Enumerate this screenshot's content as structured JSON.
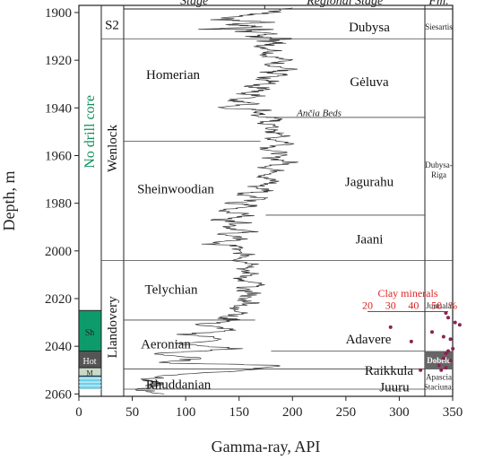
{
  "chart_data": {
    "type": "line",
    "xlabel": "Gamma-ray, API",
    "ylabel": "Depth, m",
    "xlim": [
      0,
      350
    ],
    "ylim": [
      1897,
      2061
    ],
    "xticks": [
      "0",
      "50",
      "100",
      "150",
      "200",
      "250",
      "300",
      "350"
    ],
    "yticks": [
      "1900",
      "1920",
      "1940",
      "1960",
      "1980",
      "2000",
      "2020",
      "2040",
      "2060"
    ],
    "headers": {
      "stage": "Stage",
      "regional": "Regional Stage",
      "fm": "Fm."
    },
    "series_stage": [
      "S2",
      "Wenlock",
      "Llandovery"
    ],
    "stages": [
      {
        "name": "Homerian",
        "depth": 1926
      },
      {
        "name": "Sheinwoodian",
        "depth": 1974
      },
      {
        "name": "Telychian",
        "depth": 2016
      },
      {
        "name": "Aeronian",
        "depth": 2039
      },
      {
        "name": "Rhuddanian",
        "depth": 2056
      }
    ],
    "regional_stages": [
      {
        "name": "Dubysa",
        "depth": 1906
      },
      {
        "name": "Gėluva",
        "depth": 1929
      },
      {
        "name": "Jagurahu",
        "depth": 1971
      },
      {
        "name": "Jaani",
        "depth": 1995
      },
      {
        "name": "Adavere",
        "depth": 2037
      },
      {
        "name": "Raikkula",
        "depth": 2050
      },
      {
        "name": "Juuru",
        "depth": 2057
      }
    ],
    "beds_label": "Ančia Beds",
    "formations": [
      {
        "name": "Siesartis",
        "depth": 1906
      },
      {
        "name": "Dubysa-",
        "depth": 1964
      },
      {
        "name": "Riga",
        "depth": 1968
      },
      {
        "name": "Jurmala",
        "depth": 2023
      },
      {
        "name": "Dobele",
        "depth": 2046
      },
      {
        "name": "Apascia",
        "depth": 2053
      },
      {
        "name": "Staciunai",
        "depth": 2057
      }
    ],
    "lithology": {
      "no_core": "No drill core",
      "sh": "Sh",
      "hot": "Hot",
      "m": "M"
    },
    "colors": {
      "shale": "#0e9b6c",
      "hot": "#555555",
      "marl": "#6fcfe9",
      "clay_points": "#8b2252",
      "clay_text": "#e02020",
      "dobele_bg": "#666666",
      "no_core_text": "#0e8f5a"
    },
    "clay": {
      "label": "Clay minerals",
      "axis_ticks": [
        "20",
        "30",
        "40",
        "50",
        "%"
      ],
      "points": [
        [
          54,
          2026
        ],
        [
          55,
          2028
        ],
        [
          58,
          2030
        ],
        [
          60,
          2031
        ],
        [
          30,
          2032
        ],
        [
          48,
          2034
        ],
        [
          39,
          2038
        ],
        [
          53,
          2036
        ],
        [
          56,
          2037
        ],
        [
          55,
          2042
        ],
        [
          53,
          2045
        ],
        [
          56,
          2046
        ],
        [
          51,
          2048
        ],
        [
          54,
          2049
        ],
        [
          52,
          2050
        ],
        [
          43,
          2050
        ],
        [
          54,
          2043
        ],
        [
          57,
          2041
        ]
      ]
    },
    "gamma_ray": [
      [
        200,
        1898
      ],
      [
        180,
        1900
      ],
      [
        160,
        1901
      ],
      [
        130,
        1903
      ],
      [
        180,
        1904
      ],
      [
        140,
        1905
      ],
      [
        170,
        1906
      ],
      [
        120,
        1907
      ],
      [
        180,
        1907
      ],
      [
        150,
        1908
      ],
      [
        185,
        1909
      ],
      [
        160,
        1910
      ],
      [
        195,
        1911
      ],
      [
        175,
        1912
      ],
      [
        190,
        1913
      ],
      [
        170,
        1914
      ],
      [
        185,
        1916
      ],
      [
        175,
        1918
      ],
      [
        195,
        1920
      ],
      [
        180,
        1922
      ],
      [
        200,
        1924
      ],
      [
        170,
        1925
      ],
      [
        190,
        1926
      ],
      [
        165,
        1928
      ],
      [
        185,
        1929
      ],
      [
        160,
        1931
      ],
      [
        180,
        1932
      ],
      [
        150,
        1934
      ],
      [
        175,
        1935
      ],
      [
        140,
        1937
      ],
      [
        170,
        1938
      ],
      [
        130,
        1940
      ],
      [
        175,
        1941
      ],
      [
        165,
        1943
      ],
      [
        190,
        1945
      ],
      [
        170,
        1946
      ],
      [
        185,
        1948
      ],
      [
        175,
        1950
      ],
      [
        195,
        1951
      ],
      [
        180,
        1953
      ],
      [
        200,
        1955
      ],
      [
        175,
        1957
      ],
      [
        190,
        1959
      ],
      [
        180,
        1961
      ],
      [
        200,
        1963
      ],
      [
        175,
        1965
      ],
      [
        190,
        1967
      ],
      [
        170,
        1969
      ],
      [
        185,
        1971
      ],
      [
        165,
        1973
      ],
      [
        180,
        1975
      ],
      [
        150,
        1976
      ],
      [
        175,
        1978
      ],
      [
        140,
        1980
      ],
      [
        165,
        1981
      ],
      [
        135,
        1983
      ],
      [
        160,
        1985
      ],
      [
        130,
        1987
      ],
      [
        155,
        1988
      ],
      [
        140,
        1990
      ],
      [
        160,
        1992
      ],
      [
        130,
        1993
      ],
      [
        155,
        1995
      ],
      [
        120,
        1997
      ],
      [
        150,
        1998
      ],
      [
        145,
        2000
      ],
      [
        160,
        2002
      ],
      [
        150,
        2004
      ],
      [
        170,
        2006
      ],
      [
        150,
        2008
      ],
      [
        165,
        2010
      ],
      [
        145,
        2012
      ],
      [
        170,
        2014
      ],
      [
        150,
        2016
      ],
      [
        165,
        2018
      ],
      [
        150,
        2020
      ],
      [
        165,
        2022
      ],
      [
        140,
        2024
      ],
      [
        160,
        2026
      ],
      [
        130,
        2028
      ],
      [
        150,
        2029
      ],
      [
        110,
        2031
      ],
      [
        145,
        2033
      ],
      [
        100,
        2035
      ],
      [
        140,
        2037
      ],
      [
        90,
        2039
      ],
      [
        150,
        2041
      ],
      [
        70,
        2043
      ],
      [
        110,
        2045
      ],
      [
        80,
        2047
      ],
      [
        190,
        2048
      ],
      [
        160,
        2050
      ],
      [
        90,
        2052
      ],
      [
        60,
        2054
      ],
      [
        75,
        2056
      ],
      [
        55,
        2058
      ],
      [
        80,
        2060
      ]
    ]
  }
}
